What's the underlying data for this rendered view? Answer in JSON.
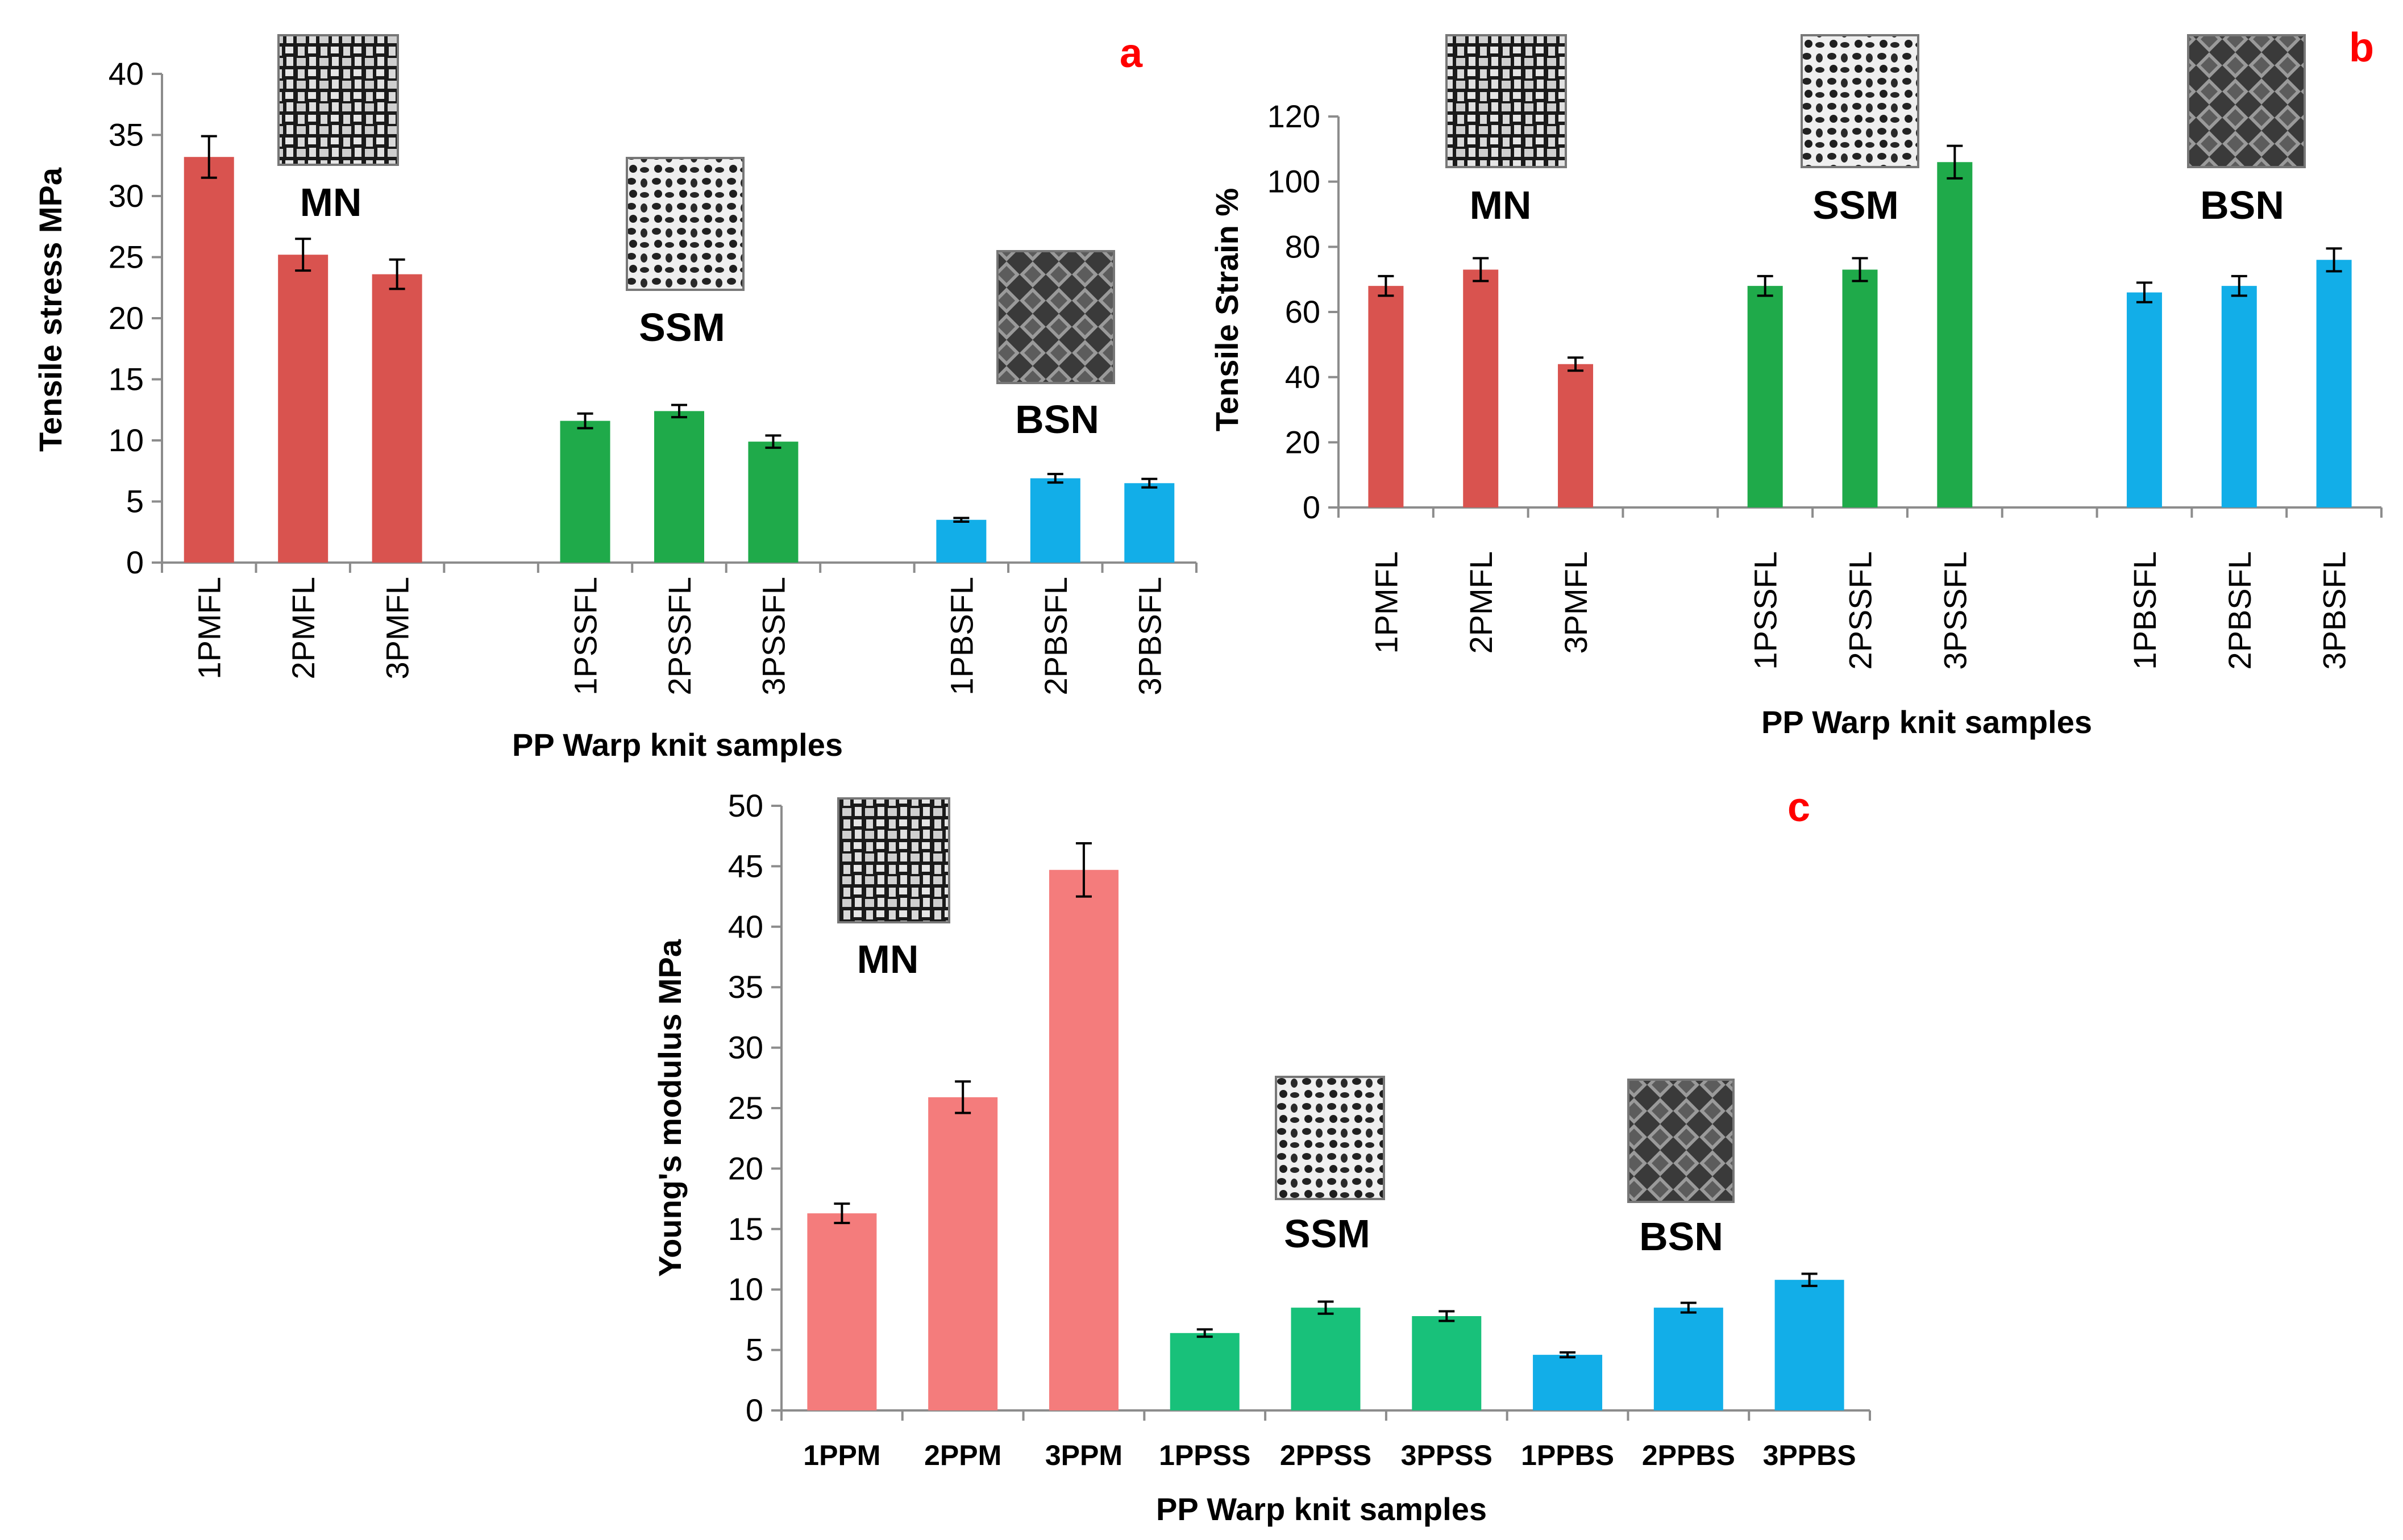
{
  "colors": {
    "MN": "#d9534f",
    "SSM": "#1faa4a",
    "BSN": "#12aee8",
    "MN_light": "#f47c7c",
    "SSM_light": "#18c17a"
  },
  "panels": [
    {
      "id": "a",
      "letter": "a",
      "group_labels": [
        "MN",
        "SSM",
        "BSN"
      ],
      "group_icons": [
        "mesh-mn-icon",
        "mesh-ssm-icon",
        "mesh-bsn-icon"
      ]
    },
    {
      "id": "b",
      "letter": "b",
      "group_labels": [
        "MN",
        "SSM",
        "BSN"
      ],
      "group_icons": [
        "mesh-mn-icon",
        "mesh-ssm-icon",
        "mesh-bsn-icon"
      ]
    },
    {
      "id": "c",
      "letter": "c",
      "group_labels": [
        "MN",
        "SSM",
        "BSN"
      ],
      "group_icons": [
        "mesh-mn-icon",
        "mesh-ssm-icon",
        "mesh-bsn-icon"
      ]
    }
  ],
  "chart_data": [
    {
      "type": "bar",
      "panel": "a",
      "title": "",
      "xlabel": "PP Warp knit samples",
      "ylabel": "Tensile stress MPa",
      "ylim": [
        0,
        40
      ],
      "yticks": [
        0,
        5,
        10,
        15,
        20,
        25,
        30,
        35,
        40
      ],
      "categories": [
        "1PMFL",
        "2PMFL",
        "3PMFL",
        "",
        "1PSSFL",
        "2PSSFL",
        "3PSSFL",
        "",
        "1PBSFL",
        "2PBSFL",
        "3PBSFL"
      ],
      "values": [
        33.2,
        25.2,
        23.6,
        null,
        11.6,
        12.4,
        9.9,
        null,
        3.5,
        6.9,
        6.5
      ],
      "errors": [
        1.7,
        1.3,
        1.2,
        null,
        0.6,
        0.5,
        0.5,
        null,
        0.15,
        0.35,
        0.35
      ],
      "groups": [
        "MN",
        "MN",
        "MN",
        null,
        "SSM",
        "SSM",
        "SSM",
        null,
        "BSN",
        "BSN",
        "BSN"
      ]
    },
    {
      "type": "bar",
      "panel": "b",
      "title": "",
      "xlabel": "PP Warp knit samples",
      "ylabel": "Tensile Strain %",
      "ylim": [
        0,
        120
      ],
      "yticks": [
        0,
        20,
        40,
        60,
        80,
        100,
        120
      ],
      "categories": [
        "1PMFL",
        "2PMFL",
        "3PMFL",
        "",
        "1PSSFL",
        "2PSSFL",
        "3PSSFL",
        "",
        "1PBSFL",
        "2PBSFL",
        "3PBSFL"
      ],
      "values": [
        68,
        73,
        44,
        null,
        68,
        73,
        106,
        null,
        66,
        68,
        76
      ],
      "errors": [
        3,
        3.5,
        2,
        null,
        3,
        3.5,
        5,
        null,
        3,
        3,
        3.5
      ],
      "groups": [
        "MN",
        "MN",
        "MN",
        null,
        "SSM",
        "SSM",
        "SSM",
        null,
        "BSN",
        "BSN",
        "BSN"
      ]
    },
    {
      "type": "bar",
      "panel": "c",
      "title": "",
      "xlabel": "PP Warp knit samples",
      "ylabel": "Young's modulus MPa",
      "ylim": [
        0,
        50
      ],
      "yticks": [
        0,
        5,
        10,
        15,
        20,
        25,
        30,
        35,
        40,
        45,
        50
      ],
      "categories": [
        "1PPM",
        "2PPM",
        "3PPM",
        "1PPSS",
        "2PPSS",
        "3PPSS",
        "1PPBS",
        "2PPBS",
        "3PPBS"
      ],
      "values": [
        16.3,
        25.9,
        44.7,
        6.4,
        8.5,
        7.8,
        4.6,
        8.5,
        10.8
      ],
      "errors": [
        0.8,
        1.3,
        2.2,
        0.3,
        0.5,
        0.4,
        0.2,
        0.4,
        0.5
      ],
      "groups": [
        "MN",
        "MN",
        "MN",
        "SSM",
        "SSM",
        "SSM",
        "BSN",
        "BSN",
        "BSN"
      ]
    }
  ]
}
